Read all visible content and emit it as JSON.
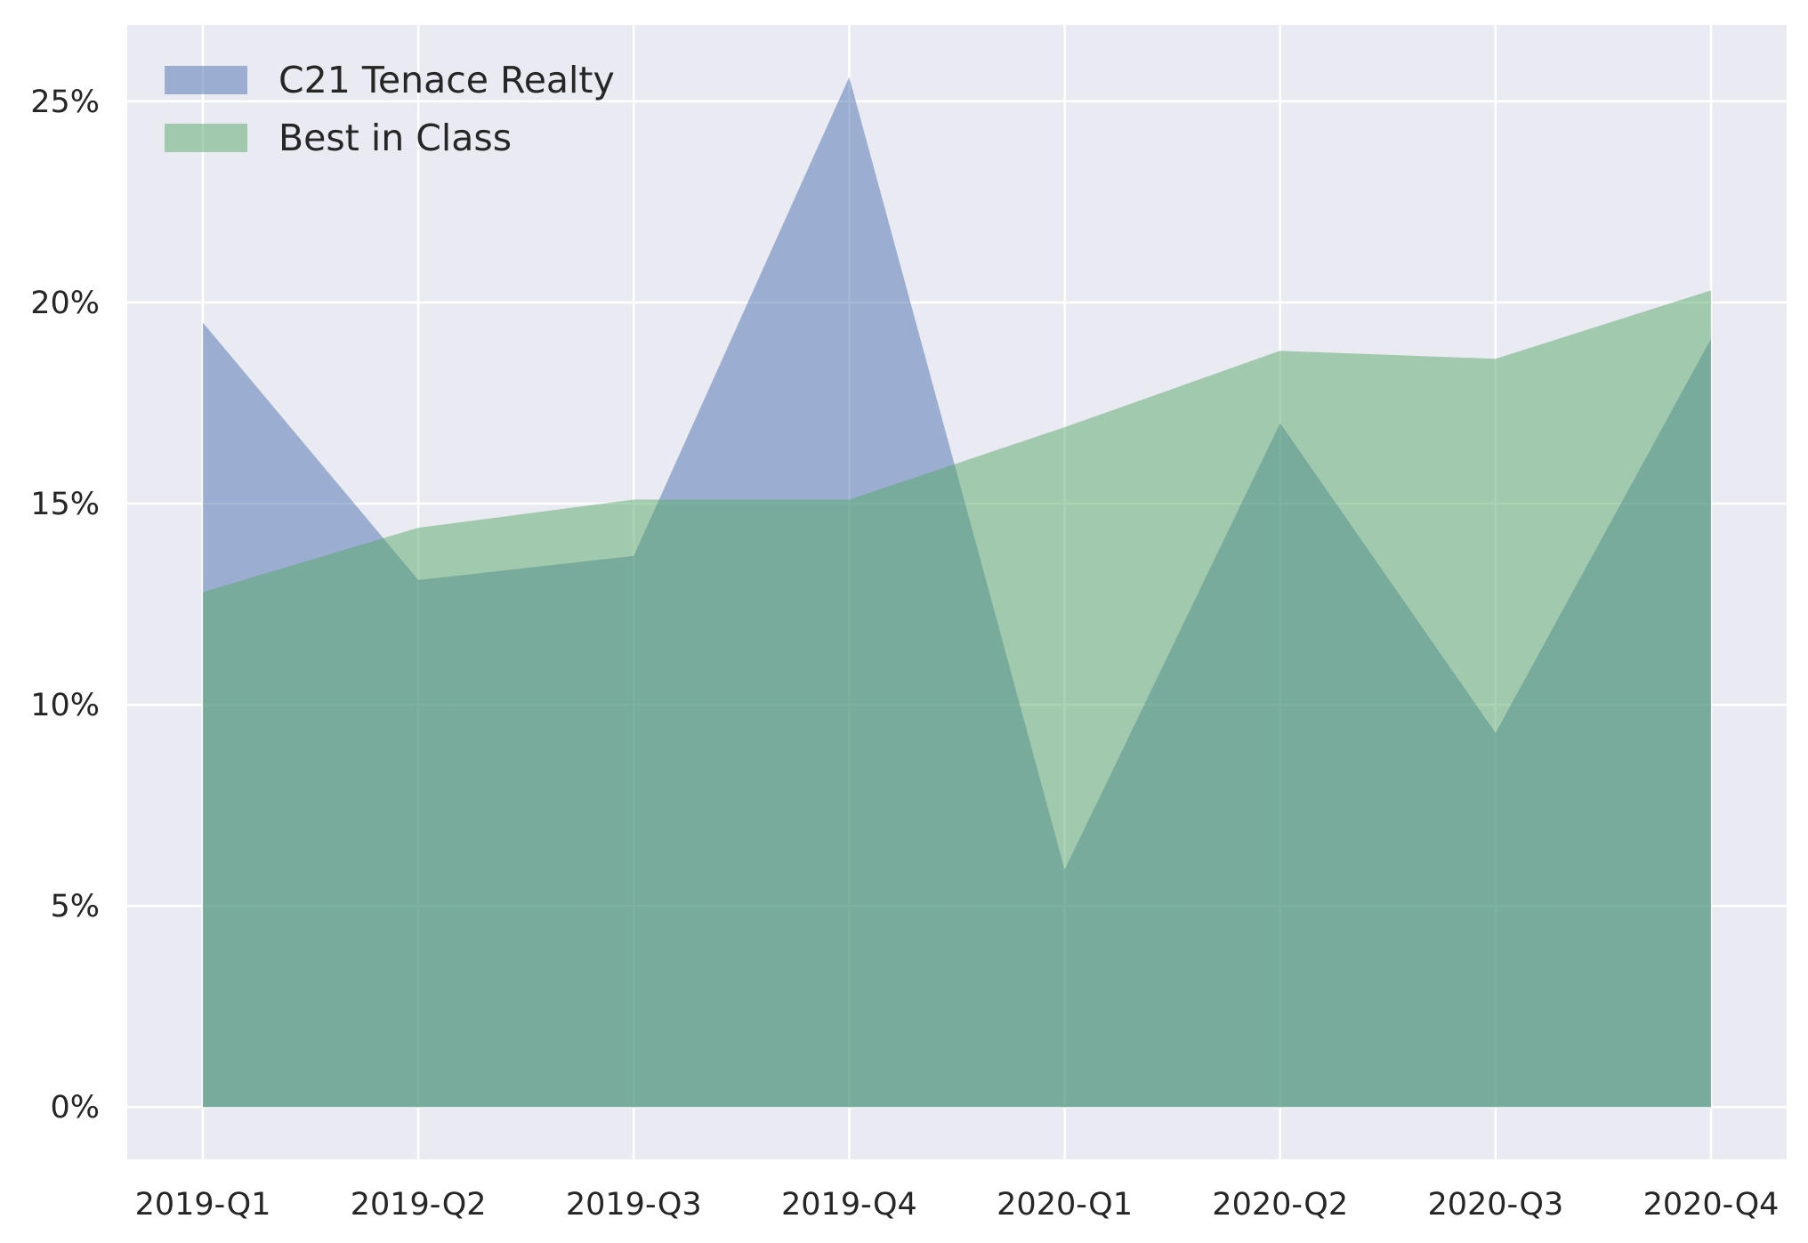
{
  "chart_data": {
    "type": "area",
    "categories": [
      "2019-Q1",
      "2019-Q2",
      "2019-Q3",
      "2019-Q4",
      "2020-Q1",
      "2020-Q2",
      "2020-Q3",
      "2020-Q4"
    ],
    "series": [
      {
        "name": "C21 Tenace Realty",
        "values": [
          19.5,
          13.1,
          13.7,
          25.6,
          5.9,
          17.0,
          9.3,
          19.1
        ],
        "color": "#4c72b0"
      },
      {
        "name": "Best in Class",
        "values": [
          12.8,
          14.4,
          15.1,
          15.1,
          16.9,
          18.8,
          18.6,
          20.3
        ],
        "color": "#55a868"
      }
    ],
    "yticks": [
      0,
      5,
      10,
      15,
      20,
      25
    ],
    "ytick_labels": [
      "0%",
      "5%",
      "10%",
      "15%",
      "20%",
      "25%"
    ],
    "ylim": [
      -1.3,
      26.9
    ],
    "grid": true,
    "legend_position": "top-left",
    "background_color": "#eaeaf2"
  }
}
